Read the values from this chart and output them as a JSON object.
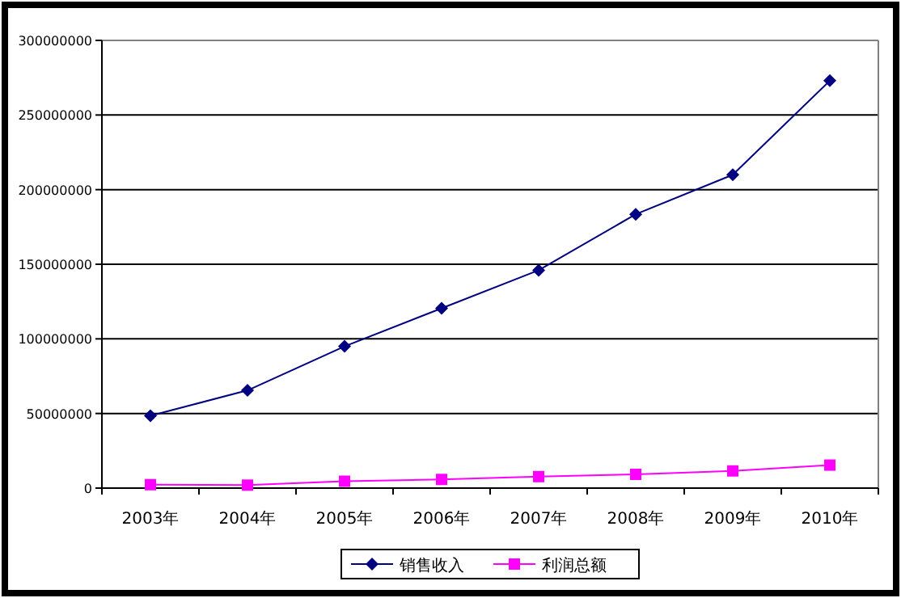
{
  "chart_data": {
    "type": "line",
    "categories": [
      "2003年",
      "2004年",
      "2005年",
      "2006年",
      "2007年",
      "2008年",
      "2009年",
      "2010年"
    ],
    "series": [
      {
        "name": "销售收入",
        "color": "#000080",
        "marker": "diamond",
        "values": [
          48500000,
          65500000,
          95000000,
          120500000,
          146000000,
          183500000,
          210000000,
          273000000
        ]
      },
      {
        "name": "利润总额",
        "color": "#ff00ff",
        "marker": "square",
        "values": [
          2300000,
          2000000,
          4600000,
          5800000,
          7700000,
          9200000,
          11500000,
          15400000
        ]
      }
    ],
    "ylim": [
      0,
      300000000
    ],
    "yticks": [
      0,
      50000000,
      100000000,
      150000000,
      200000000,
      250000000,
      300000000
    ],
    "grid": "y",
    "legend": "bottom"
  }
}
